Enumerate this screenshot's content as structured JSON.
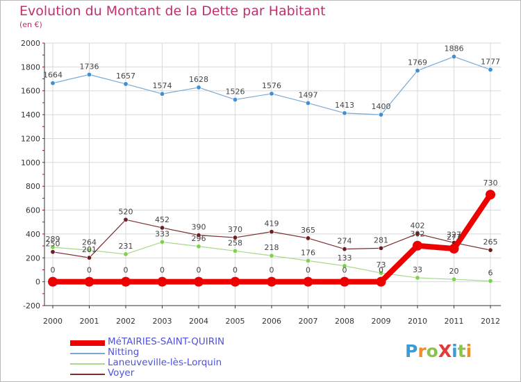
{
  "header": {
    "title": "Evolution du Montant de la Dette par Habitant",
    "subtitle": "(en €)"
  },
  "colors": {
    "title": "#c0306e",
    "axis": "#333333",
    "grid": "#d8d8d8",
    "legend_text": "#4f51d8"
  },
  "logo": {
    "text": "ProXiti",
    "letters": [
      "P",
      "r",
      "o",
      "X",
      "i",
      "t",
      "i"
    ],
    "letter_colors": [
      "#3a9bd5",
      "#f28c28",
      "#8bc34a",
      "#e53935",
      "#3a9bd5",
      "#8bc34a",
      "#f28c28"
    ]
  },
  "chart_data": {
    "type": "line",
    "title": "Evolution du Montant de la Dette par Habitant",
    "subtitle": "(en €)",
    "xlabel": "",
    "ylabel": "",
    "x": [
      "2000",
      "2001",
      "2002",
      "2003",
      "2004",
      "2005",
      "2006",
      "2007",
      "2008",
      "2009",
      "2010",
      "2011",
      "2012"
    ],
    "ylim": [
      -200,
      2000
    ],
    "yticks": [
      -200,
      0,
      200,
      400,
      600,
      800,
      1000,
      1200,
      1400,
      1600,
      1800,
      2000
    ],
    "ytick_labels": [
      "-200",
      "0",
      "200",
      "400",
      "600",
      "800",
      "1000",
      "1200",
      "1400",
      "1600",
      "1800",
      "2000"
    ],
    "grid": true,
    "legend": "bottom-left",
    "series": [
      {
        "name": "Nitting",
        "color": "#7aa9d4",
        "marker_color": "#3f8fd2",
        "values": [
          1664,
          1736,
          1657,
          1574,
          1628,
          1526,
          1576,
          1497,
          1413,
          1400,
          1769,
          1886,
          1777
        ],
        "labels": [
          "1664",
          "1736",
          "1657",
          "1574",
          "1628",
          "1526",
          "1576",
          "1497",
          "1413",
          "1400",
          "1769",
          "1886",
          "1777"
        ]
      },
      {
        "name": "Laneuveville-lès-Lorquin",
        "color": "#a6d88a",
        "marker_color": "#7fd14e",
        "values": [
          289,
          264,
          231,
          333,
          296,
          258,
          218,
          176,
          133,
          73,
          33,
          20,
          6
        ],
        "labels": [
          "289",
          "264",
          "231",
          "333",
          "296",
          "258",
          "218",
          "176",
          "133",
          "73",
          "33",
          "20",
          "6"
        ]
      },
      {
        "name": "Voyer",
        "color": "#7a2e2e",
        "marker_color": "#6b1f1f",
        "values": [
          250,
          201,
          520,
          452,
          390,
          370,
          419,
          365,
          274,
          281,
          402,
          327,
          265
        ],
        "labels": [
          "250",
          "201",
          "520",
          "452",
          "390",
          "370",
          "419",
          "365",
          "274",
          "281",
          "402",
          "327",
          "265"
        ]
      },
      {
        "name": "MéTAIRIES-SAINT-QUIRIN",
        "color": "#ee0000",
        "marker_color": "#ee0000",
        "values": [
          0,
          0,
          0,
          0,
          0,
          0,
          0,
          0,
          0,
          0,
          302,
          277,
          730
        ],
        "labels": [
          "0",
          "0",
          "0",
          "0",
          "0",
          "0",
          "0",
          "0",
          "0",
          "0",
          "302",
          "277",
          "730"
        ]
      }
    ],
    "legend_order": [
      "MéTAIRIES-SAINT-QUIRIN",
      "Nitting",
      "Laneuveville-lès-Lorquin",
      "Voyer"
    ]
  }
}
